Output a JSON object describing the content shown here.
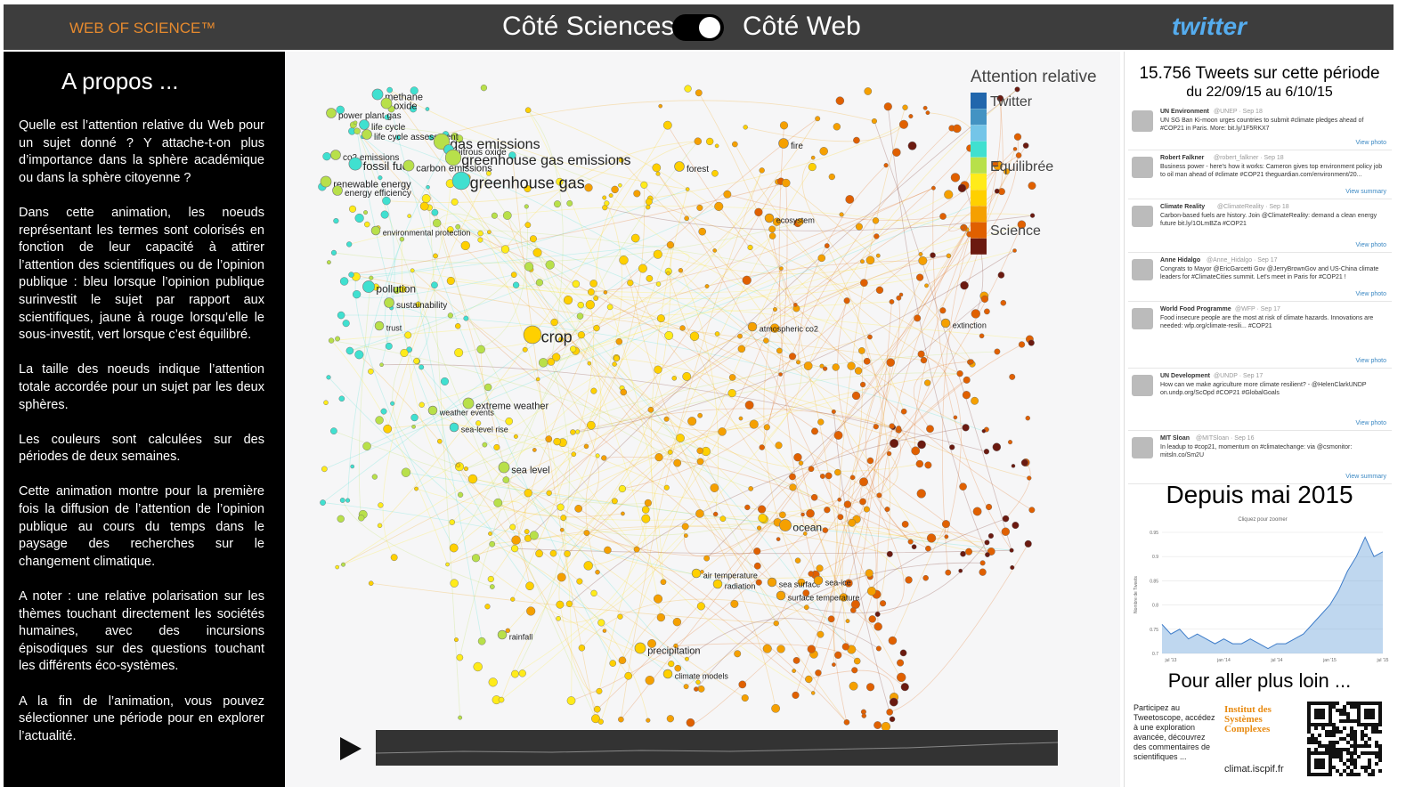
{
  "header": {
    "wos": "WEB OF SCIENCE™",
    "left_label": "Côté Sciences",
    "right_label": "Côté Web",
    "twitter": "twitter"
  },
  "about": {
    "title": "A propos ...",
    "paragraphs": [
      "Quelle est l’attention relative du Web pour un sujet donné ? Y attache-t-on plus d’importance dans la sphère académique ou dans la sphère citoyenne ?",
      "Dans cette animation, les noeuds représentant les termes sont colorisés en fonction de leur capacité à attirer l’attention des scientifiques ou de l’opinion publique : bleu lorsque l’opinion publique surinvestit le sujet par rapport aux scientifiques, jaune à rouge lorsqu’elle le sous-investit, vert lorsque c’est équilibré.",
      "La taille des noeuds indique l’attention totale accordée pour un sujet par les deux sphères.",
      "Les couleurs sont calculées sur des périodes de deux semaines.",
      "Cette animation montre pour la première fois la diffusion de l’attention de l’opinion publique au cours du temps dans le paysage des recherches sur le changement climatique.",
      "A noter : une relative polarisation sur les thèmes touchant directement les sociétés humaines, avec des incursions épisodiques sur des questions touchant les différents éco-systèmes.",
      "A la fin de l’animation, vous pouvez sélectionner une période pour en explorer l’actualité."
    ]
  },
  "legend": {
    "title": "Attention relative",
    "twitter": "Twitter",
    "balanced": "Equilibrée",
    "science": "Science",
    "colors": [
      "#2166ac",
      "#4393c3",
      "#74c5e8",
      "#40e0d0",
      "#b8e04a",
      "#ffeb1a",
      "#ffd000",
      "#f5a000",
      "#e06000",
      "#6b1a10"
    ]
  },
  "nodes": [
    "methane",
    "oxide",
    "power plant gas",
    "life cycle",
    "life cycle assessment",
    "gas emissions",
    "nitrous oxide",
    "co2 emissions",
    "greenhouse gas emissions",
    "fossil fuel",
    "carbon emissions",
    "renewable energy",
    "greenhouse gas",
    "energy efficiency",
    "environmental protection",
    "pollution",
    "sustainability",
    "trust",
    "crop",
    "extreme weather",
    "weather events",
    "sea-level rise",
    "sea level",
    "rainfall",
    "precipitation",
    "climate models",
    "air temperature",
    "radiation",
    "sea surface",
    "sea-ice",
    "surface temperature",
    "ocean",
    "atmospheric co2",
    "extinction",
    "ecosystem",
    "forest",
    "fire"
  ],
  "tweets_panel": {
    "title": "15.756 Tweets sur cette période",
    "period": "du 22/09/15 au 6/10/15",
    "tweets": [
      {
        "name": "UN Environment",
        "handle": "@UNEP · Sep 18",
        "text": "UN SG Ban Ki-moon urges countries to submit #climate pledges ahead of #COP21 in Paris. More: bit.ly/1F5RKX7",
        "link": "View photo"
      },
      {
        "name": "Robert Falkner",
        "handle": "@robert_falkner · Sep 18",
        "text": "Business power - here's how it works: Cameron gives top environment policy job to oil man ahead of #climate #COP21 theguardian.com/environment/20...",
        "link": "View summary"
      },
      {
        "name": "Climate Reality",
        "handle": "@ClimateReality · Sep 18",
        "text": "Carbon-based fuels are history. Join @ClimateReality: demand a clean energy future bit.ly/1OLmBZa #COP21",
        "link": "View photo"
      },
      {
        "name": "Anne Hidalgo",
        "handle": "@Anne_Hidalgo · Sep 17",
        "text": "Congrats to Mayor @EricGarcetti Gov @JerryBrownGov and US-China climate leaders for #ClimateCities summit. Let's meet in Paris for #COP21 !",
        "link": "View photo"
      },
      {
        "name": "World Food Programme",
        "handle": "@WFP · Sep 17",
        "text": "Food insecure people are the most at risk of climate hazards. Innovations are needed: wfp.org/climate-resili... #COP21",
        "link": "View photo"
      },
      {
        "name": "UN Development",
        "handle": "@UNDP · Sep 17",
        "text": "How can we make agriculture more climate resilient? - @HelenClarkUNDP on.undp.org/ScOpd #COP21 #GlobalGoals",
        "link": "View photo"
      },
      {
        "name": "MIT Sloan",
        "handle": "@MITSloan · Sep 16",
        "text": "In leadup to #cop21, momentum on #climatechange: via @csmonitor: mitsln.co/Sm2U",
        "link": "View summary"
      }
    ]
  },
  "chart_data": {
    "type": "area",
    "title": "Depuis mai 2015",
    "subtitle": "Cliquez pour zoomer",
    "y_label": "Nombre de Tweets",
    "color": "#7fb0e0",
    "categories": [
      null,
      "jul '13",
      null,
      null,
      null,
      null,
      null,
      "jan '14",
      null,
      null,
      null,
      null,
      null,
      "jul '14",
      null,
      null,
      null,
      null,
      null,
      "jan '15",
      null,
      null,
      null,
      null,
      null,
      "jul '15"
    ],
    "values": [
      0.76,
      0.74,
      0.75,
      0.73,
      0.74,
      0.73,
      0.72,
      0.73,
      0.72,
      0.72,
      0.73,
      0.72,
      0.71,
      0.72,
      0.72,
      0.73,
      0.74,
      0.76,
      0.78,
      0.8,
      0.83,
      0.87,
      0.9,
      0.94,
      0.9,
      0.91
    ],
    "ylim": [
      0.7,
      0.95
    ],
    "yticks": [
      0.7,
      0.75,
      0.8,
      0.85,
      0.9,
      0.95
    ]
  },
  "footer": {
    "title": "Pour aller plus loin ...",
    "text": "Participez au Tweetoscope, accédez à une exploration avancée, découvrez des commentaires de scientifiques ...",
    "institute": "Institut des Systèmes Complexes",
    "url": "climat.iscpif.fr"
  }
}
